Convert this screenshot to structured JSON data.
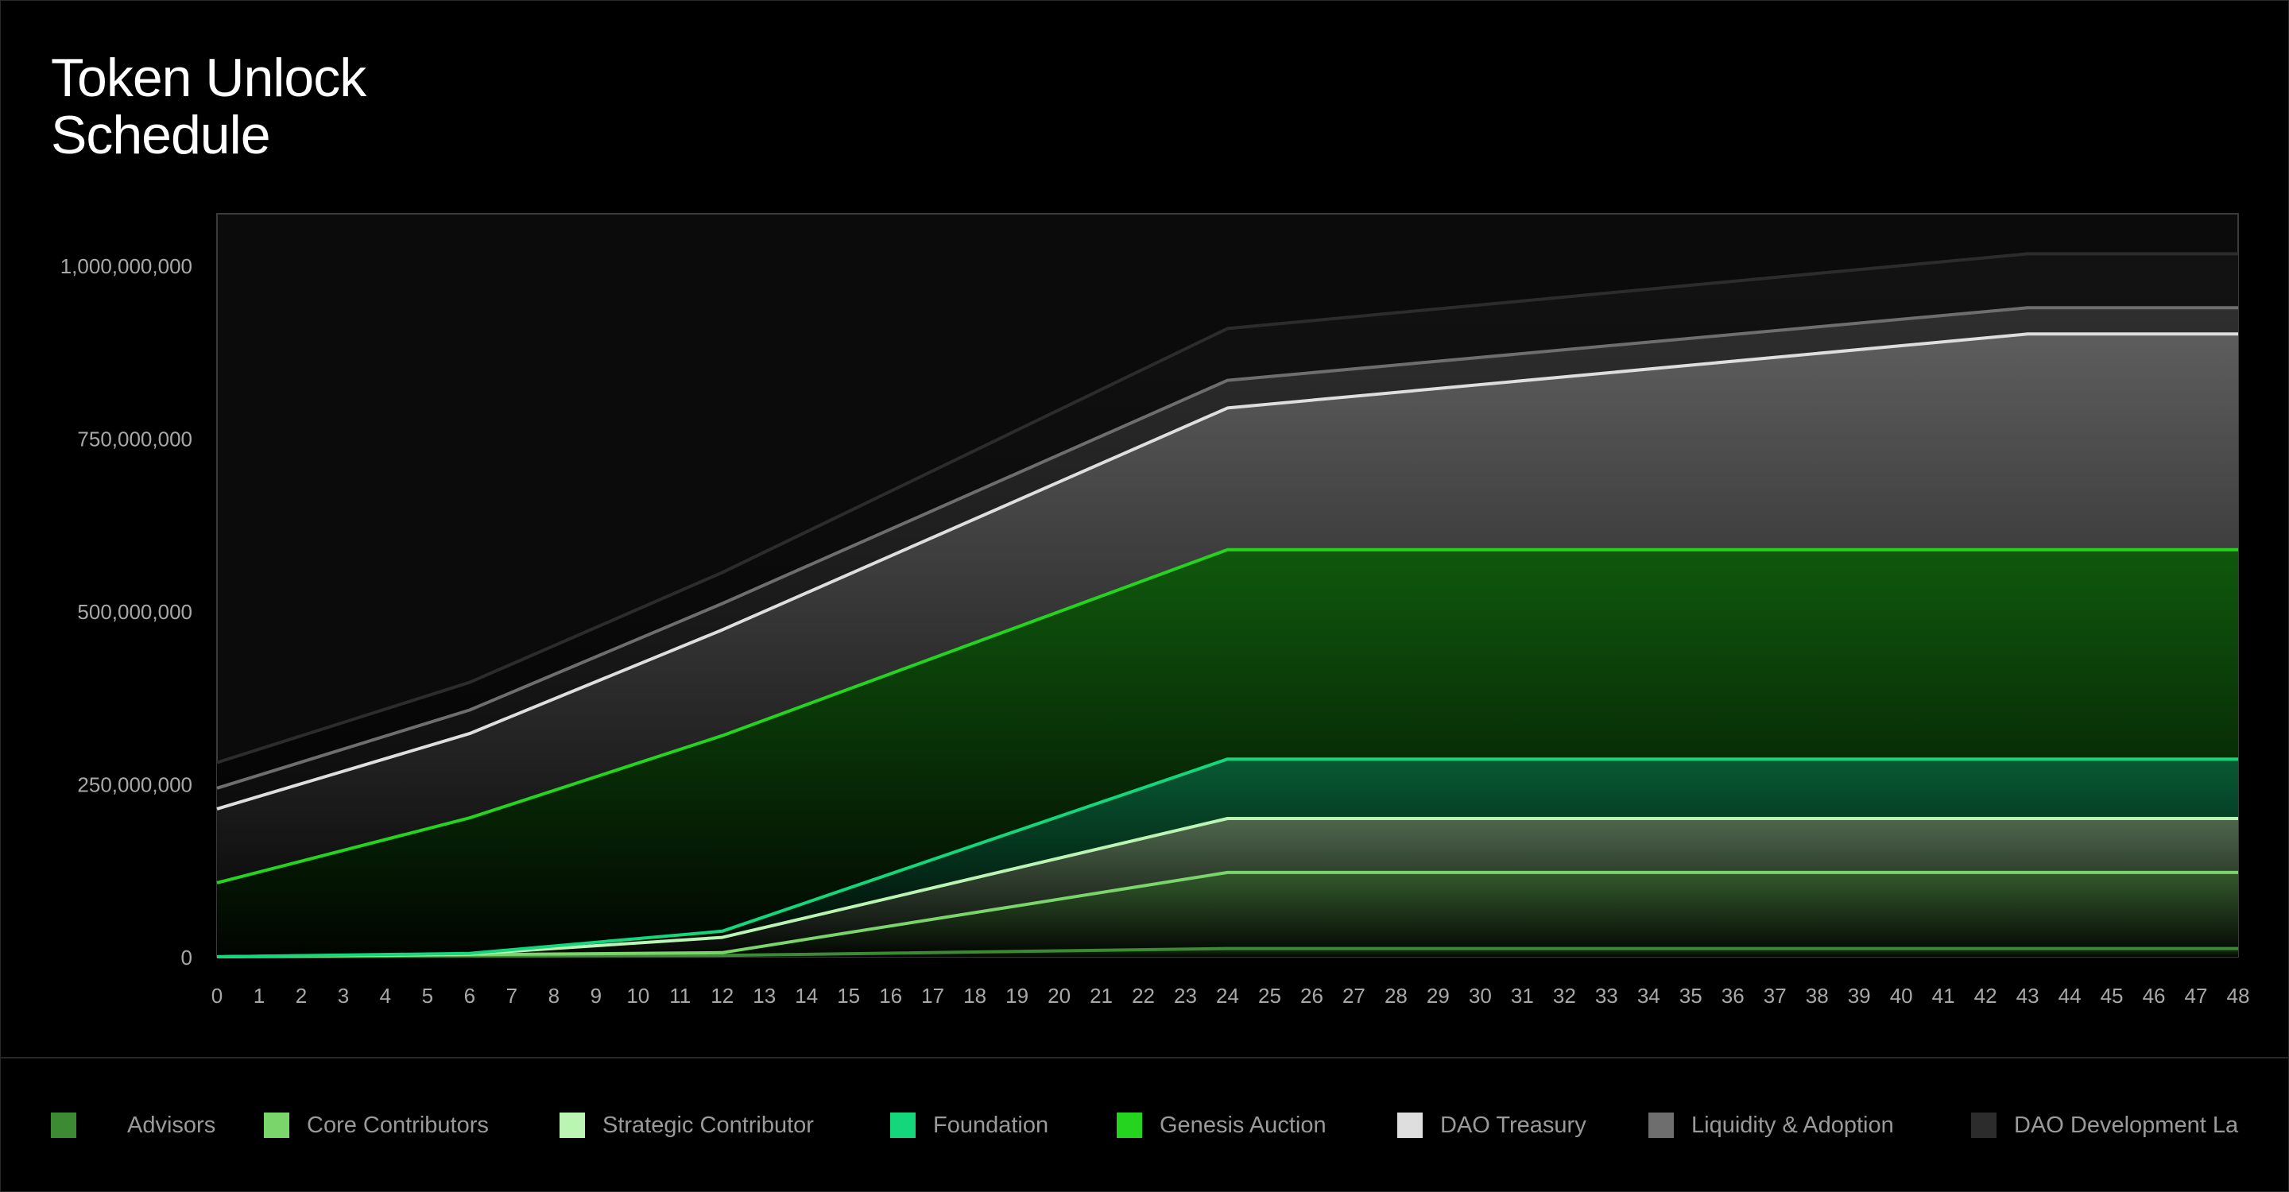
{
  "page": {
    "title_lines": [
      "Token Unlock",
      "Schedule"
    ]
  },
  "colors": {
    "background": "#000000",
    "plot_background": "#0b0b0b",
    "axis_text": "#a8a8a8"
  },
  "chart_data": {
    "type": "area",
    "stacked": true,
    "title": "Token Unlock Schedule",
    "xlabel": "",
    "ylabel": "",
    "xlim": [
      0,
      48
    ],
    "ylim": [
      0,
      1075000000
    ],
    "x_ticks": [
      0,
      1,
      2,
      3,
      4,
      5,
      6,
      7,
      8,
      9,
      10,
      11,
      12,
      13,
      14,
      15,
      16,
      17,
      18,
      19,
      20,
      21,
      22,
      23,
      24,
      25,
      26,
      27,
      28,
      29,
      30,
      31,
      32,
      33,
      34,
      35,
      36,
      37,
      38,
      39,
      40,
      41,
      42,
      43,
      44,
      45,
      46,
      47,
      48
    ],
    "y_ticks": [
      0,
      250000000,
      500000000,
      750000000,
      1000000000
    ],
    "y_tick_labels": [
      "0",
      "250,000,000",
      "500,000,000",
      "750,000,000",
      "1,000,000,000"
    ],
    "grid": false,
    "legend_position": "bottom",
    "x": [
      0,
      6,
      12,
      24,
      43,
      48
    ],
    "series": [
      {
        "name": "Advisors",
        "color": "#3d8a34",
        "values": [
          0,
          1000000,
          2000000,
          12000000,
          12000000,
          12000000
        ]
      },
      {
        "name": "Core Contributors",
        "color": "#7ad66a",
        "values": [
          0,
          2000000,
          4000000,
          110000000,
          110000000,
          110000000
        ]
      },
      {
        "name": "Strategic Contributor",
        "color": "#baf5b4",
        "values": [
          0,
          1000000,
          22000000,
          78000000,
          78000000,
          78000000
        ]
      },
      {
        "name": "Foundation",
        "color": "#14d67a",
        "values": [
          0,
          1000000,
          9000000,
          86000000,
          86000000,
          86000000
        ]
      },
      {
        "name": "Genesis Auction",
        "color": "#25d41e",
        "values": [
          107000000,
          196000000,
          283000000,
          303000000,
          303000000,
          303000000
        ]
      },
      {
        "name": "DAO Treasury",
        "color": "#dedede",
        "values": [
          107000000,
          122000000,
          153000000,
          205000000,
          312000000,
          312000000
        ]
      },
      {
        "name": "Liquidity & Adoption",
        "color": "#6e6e6e",
        "values": [
          30000000,
          34000000,
          38000000,
          40000000,
          38000000,
          38000000
        ]
      },
      {
        "name": "DAO Development Labs",
        "color": "#2c2c2c",
        "values": [
          37000000,
          40000000,
          45000000,
          75000000,
          78000000,
          78000000
        ]
      }
    ]
  },
  "legend": {
    "items": [
      {
        "label": "Advisors",
        "color": "#3d8a34"
      },
      {
        "label": "Core Contributors",
        "color": "#7ad66a"
      },
      {
        "label": "Strategic Contributor",
        "color": "#baf5b4"
      },
      {
        "label": "Foundation",
        "color": "#14d67a"
      },
      {
        "label": "Genesis Auction",
        "color": "#25d41e"
      },
      {
        "label": "DAO Treasury",
        "color": "#dedede"
      },
      {
        "label": "Liquidity & Adoption",
        "color": "#6e6e6e"
      },
      {
        "label": "DAO Development La",
        "color": "#2c2c2c"
      }
    ]
  }
}
